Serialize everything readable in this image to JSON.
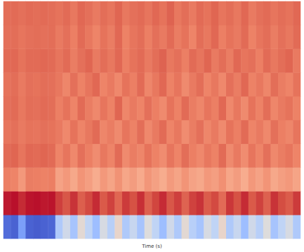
{
  "chart_data": {
    "type": "heatmap",
    "xlabel": "Time (s)",
    "tick_labels": false,
    "zlim": [
      -1,
      1
    ],
    "z": [
      [
        -0.85,
        -0.9,
        -0.6,
        -0.9,
        -0.92,
        -0.9,
        -0.88,
        -0.3,
        -0.1,
        -0.35,
        0.05,
        -0.2,
        -0.4,
        -0.05,
        -0.25,
        0.1,
        -0.3,
        -0.15,
        -0.35,
        0.0,
        -0.2,
        -0.4,
        -0.1,
        -0.3,
        0.05,
        -0.25,
        -0.35,
        -0.05,
        -0.2,
        0.1,
        -0.3,
        -0.15,
        -0.4,
        -0.1,
        -0.25,
        0.0,
        -0.35,
        -0.2,
        -0.05,
        -0.3
      ],
      [
        0.95,
        0.97,
        0.9,
        0.96,
        0.97,
        0.95,
        0.96,
        0.85,
        0.78,
        0.88,
        0.75,
        0.82,
        0.9,
        0.77,
        0.84,
        0.72,
        0.86,
        0.8,
        0.89,
        0.74,
        0.83,
        0.9,
        0.78,
        0.85,
        0.73,
        0.84,
        0.88,
        0.76,
        0.82,
        0.7,
        0.87,
        0.8,
        0.9,
        0.77,
        0.84,
        0.74,
        0.88,
        0.81,
        0.76,
        0.86
      ],
      [
        0.62,
        0.6,
        0.5,
        0.63,
        0.62,
        0.61,
        0.62,
        0.45,
        0.5,
        0.42,
        0.52,
        0.47,
        0.4,
        0.5,
        0.44,
        0.53,
        0.43,
        0.48,
        0.41,
        0.51,
        0.46,
        0.4,
        0.49,
        0.44,
        0.52,
        0.45,
        0.42,
        0.5,
        0.47,
        0.54,
        0.43,
        0.48,
        0.4,
        0.5,
        0.45,
        0.52,
        0.42,
        0.47,
        0.5,
        0.44
      ],
      [
        0.7,
        0.72,
        0.66,
        0.71,
        0.7,
        0.72,
        0.7,
        0.6,
        0.66,
        0.58,
        0.68,
        0.62,
        0.56,
        0.65,
        0.6,
        0.7,
        0.57,
        0.63,
        0.59,
        0.67,
        0.61,
        0.56,
        0.66,
        0.6,
        0.69,
        0.62,
        0.58,
        0.65,
        0.61,
        0.7,
        0.57,
        0.64,
        0.56,
        0.66,
        0.6,
        0.68,
        0.58,
        0.63,
        0.66,
        0.6
      ],
      [
        0.66,
        0.68,
        0.64,
        0.67,
        0.66,
        0.68,
        0.67,
        0.64,
        0.58,
        0.67,
        0.6,
        0.65,
        0.7,
        0.59,
        0.63,
        0.57,
        0.66,
        0.61,
        0.69,
        0.58,
        0.64,
        0.7,
        0.6,
        0.65,
        0.56,
        0.63,
        0.68,
        0.59,
        0.64,
        0.57,
        0.67,
        0.62,
        0.7,
        0.6,
        0.64,
        0.58,
        0.68,
        0.62,
        0.59,
        0.66
      ],
      [
        0.68,
        0.7,
        0.65,
        0.69,
        0.68,
        0.7,
        0.69,
        0.62,
        0.67,
        0.6,
        0.7,
        0.63,
        0.58,
        0.66,
        0.61,
        0.72,
        0.59,
        0.64,
        0.6,
        0.68,
        0.62,
        0.57,
        0.67,
        0.61,
        0.7,
        0.63,
        0.59,
        0.66,
        0.62,
        0.71,
        0.58,
        0.65,
        0.57,
        0.67,
        0.61,
        0.69,
        0.59,
        0.64,
        0.67,
        0.61
      ],
      [
        0.67,
        0.69,
        0.64,
        0.68,
        0.67,
        0.69,
        0.68,
        0.65,
        0.59,
        0.68,
        0.61,
        0.66,
        0.71,
        0.6,
        0.64,
        0.58,
        0.67,
        0.62,
        0.7,
        0.59,
        0.65,
        0.71,
        0.61,
        0.66,
        0.57,
        0.64,
        0.69,
        0.6,
        0.65,
        0.58,
        0.68,
        0.63,
        0.71,
        0.61,
        0.65,
        0.59,
        0.69,
        0.63,
        0.6,
        0.67
      ],
      [
        0.7,
        0.71,
        0.67,
        0.7,
        0.7,
        0.71,
        0.7,
        0.66,
        0.7,
        0.63,
        0.68,
        0.72,
        0.64,
        0.69,
        0.65,
        0.71,
        0.62,
        0.67,
        0.7,
        0.64,
        0.69,
        0.73,
        0.65,
        0.68,
        0.62,
        0.7,
        0.66,
        0.72,
        0.64,
        0.69,
        0.63,
        0.71,
        0.66,
        0.68,
        0.62,
        0.7,
        0.65,
        0.69,
        0.72,
        0.64
      ],
      [
        0.68,
        0.69,
        0.66,
        0.68,
        0.69,
        0.68,
        0.69,
        0.64,
        0.68,
        0.62,
        0.7,
        0.65,
        0.6,
        0.67,
        0.63,
        0.71,
        0.61,
        0.66,
        0.69,
        0.62,
        0.68,
        0.64,
        0.7,
        0.63,
        0.67,
        0.6,
        0.69,
        0.65,
        0.71,
        0.62,
        0.67,
        0.64,
        0.7,
        0.61,
        0.66,
        0.69,
        0.63,
        0.68,
        0.65,
        0.7
      ],
      [
        0.69,
        0.7,
        0.68,
        0.7,
        0.69,
        0.7,
        0.69,
        0.67,
        0.7,
        0.65,
        0.71,
        0.68,
        0.64,
        0.69,
        0.66,
        0.72,
        0.65,
        0.68,
        0.7,
        0.66,
        0.71,
        0.67,
        0.73,
        0.65,
        0.69,
        0.64,
        0.7,
        0.67,
        0.72,
        0.66,
        0.69,
        0.65,
        0.71,
        0.64,
        0.68,
        0.7,
        0.66,
        0.69,
        0.67,
        0.71
      ]
    ]
  }
}
